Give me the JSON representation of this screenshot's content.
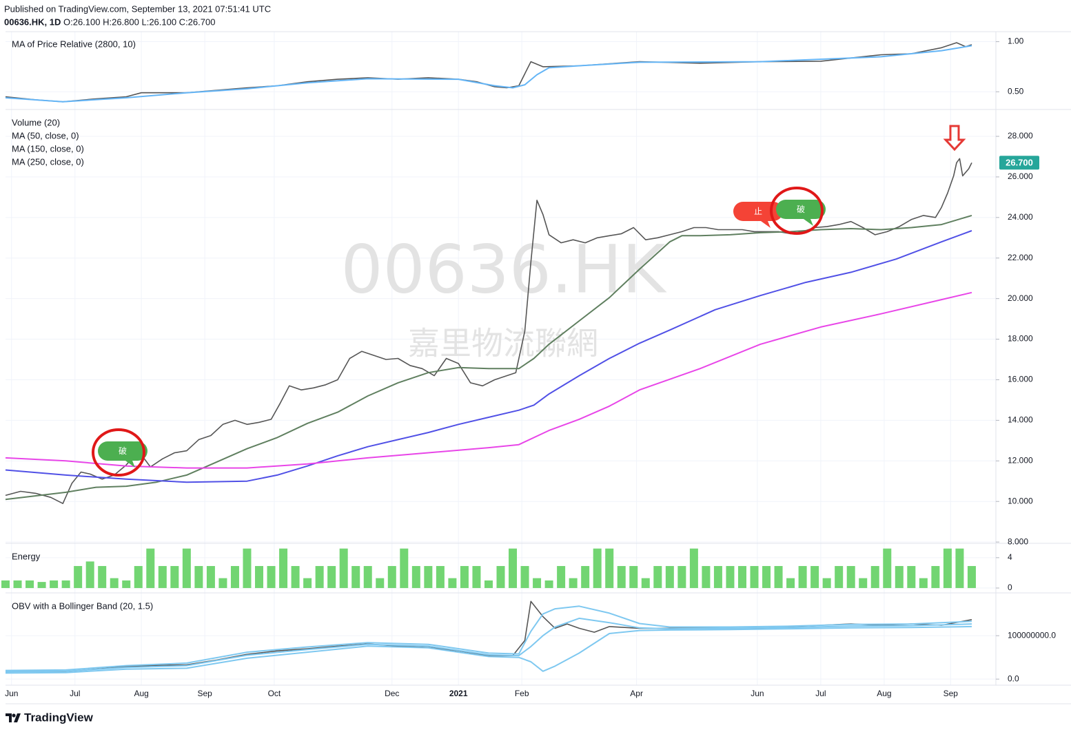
{
  "header": {
    "published": "Published on TradingView.com, September 13, 2021 07:51:41 UTC",
    "symbol": "00636.HK, 1D",
    "ohlc": "O:26.100 H:26.800 L:26.100 C:26.700"
  },
  "footer": {
    "brand": "TradingView"
  },
  "chart_data": [
    {
      "type": "line",
      "title": "MA of Price Relative (2800, 10)",
      "series": [
        {
          "color": "#555555",
          "x": [
            0,
            10,
            19,
            30,
            40,
            45,
            60,
            80,
            90,
            100,
            110,
            120,
            130,
            140,
            150,
            156,
            162,
            166,
            170,
            174,
            178,
            190,
            210,
            230,
            250,
            270,
            290,
            300,
            310,
            315,
            318,
            320
          ],
          "values": [
            0.45,
            0.42,
            0.4,
            0.43,
            0.45,
            0.49,
            0.49,
            0.54,
            0.56,
            0.6,
            0.625,
            0.64,
            0.625,
            0.64,
            0.625,
            0.6,
            0.55,
            0.54,
            0.56,
            0.8,
            0.75,
            0.76,
            0.8,
            0.785,
            0.8,
            0.805,
            0.87,
            0.88,
            0.94,
            0.99,
            0.95,
            0.97
          ]
        },
        {
          "color": "#64b5f6",
          "x": [
            0,
            19,
            40,
            60,
            80,
            100,
            120,
            150,
            162,
            168,
            172,
            176,
            180,
            190,
            210,
            250,
            290,
            310,
            320
          ],
          "values": [
            0.44,
            0.4,
            0.44,
            0.49,
            0.53,
            0.59,
            0.63,
            0.625,
            0.56,
            0.54,
            0.57,
            0.67,
            0.74,
            0.76,
            0.795,
            0.8,
            0.85,
            0.91,
            0.96
          ]
        }
      ],
      "ylim": [
        0.33,
        1.1
      ],
      "yticks": [
        {
          "value": 1,
          "label": "1.00"
        },
        {
          "value": 0.5,
          "label": "0.50"
        }
      ],
      "grid": true
    },
    {
      "type": "line",
      "subtitle": "Volume (20)",
      "watermark": [
        "00636.HK",
        "嘉里物流聯網"
      ],
      "series": [
        {
          "color": "#555555",
          "x": [
            0,
            5,
            10,
            15,
            19,
            22,
            25,
            28,
            32,
            36,
            40,
            44,
            48,
            52,
            56,
            60,
            64,
            68,
            72,
            76,
            80,
            84,
            88,
            91,
            94,
            98,
            102,
            106,
            110,
            114,
            118,
            122,
            126,
            130,
            134,
            138,
            142,
            146,
            150,
            154,
            158,
            162,
            166,
            169,
            172,
            174,
            176,
            178,
            180,
            184,
            188,
            192,
            196,
            200,
            204,
            208,
            212,
            216,
            220,
            224,
            228,
            232,
            236,
            240,
            244,
            248,
            252,
            256,
            260,
            264,
            268,
            272,
            276,
            280,
            284,
            288,
            292,
            296,
            300,
            304,
            308,
            310,
            312,
            314,
            315,
            316,
            317,
            319,
            320
          ],
          "values": [
            10.3,
            10.5,
            10.4,
            10.2,
            9.9,
            10.9,
            11.45,
            11.35,
            11.1,
            11.3,
            11.8,
            12.5,
            11.7,
            12.1,
            12.4,
            12.5,
            13.05,
            13.25,
            13.8,
            14.0,
            13.8,
            13.9,
            14.05,
            14.85,
            15.7,
            15.5,
            15.6,
            15.75,
            16.0,
            17.05,
            17.4,
            17.2,
            17.0,
            17.05,
            16.7,
            16.55,
            16.2,
            17.05,
            16.8,
            15.85,
            15.7,
            16.0,
            16.2,
            16.35,
            18.4,
            21.8,
            24.85,
            24.15,
            23.15,
            22.75,
            22.9,
            22.75,
            23.0,
            23.1,
            23.2,
            23.5,
            22.9,
            23.0,
            23.15,
            23.3,
            23.5,
            23.5,
            23.4,
            23.4,
            23.4,
            23.3,
            23.3,
            23.3,
            23.2,
            23.3,
            23.5,
            23.55,
            23.65,
            23.8,
            23.5,
            23.15,
            23.3,
            23.55,
            23.9,
            24.1,
            24.0,
            24.5,
            25.2,
            26.05,
            26.7,
            26.9,
            26.05,
            26.4,
            26.7
          ]
        },
        {
          "name": "MA (50, close, 0)",
          "color": "#5f7f5f",
          "x": [
            0,
            20,
            30,
            40,
            50,
            60,
            70,
            80,
            90,
            100,
            110,
            120,
            130,
            140,
            150,
            160,
            170,
            175,
            180,
            190,
            200,
            210,
            220,
            224,
            230,
            240,
            250,
            260,
            270,
            280,
            290,
            300,
            310,
            320
          ],
          "values": [
            10.1,
            10.45,
            10.7,
            10.75,
            10.95,
            11.3,
            11.95,
            12.6,
            13.15,
            13.85,
            14.4,
            15.2,
            15.85,
            16.35,
            16.6,
            16.55,
            16.55,
            17.05,
            17.75,
            18.9,
            20.05,
            21.45,
            22.8,
            23.1,
            23.1,
            23.15,
            23.25,
            23.3,
            23.4,
            23.45,
            23.4,
            23.5,
            23.65,
            24.1
          ]
        },
        {
          "name": "MA (150, close, 0)",
          "color": "#5050e6",
          "x": [
            0,
            20,
            40,
            60,
            80,
            90,
            100,
            110,
            120,
            130,
            140,
            150,
            160,
            170,
            175,
            180,
            190,
            200,
            210,
            220,
            235,
            250,
            265,
            280,
            295,
            310,
            320
          ],
          "values": [
            11.55,
            11.3,
            11.1,
            10.95,
            11.0,
            11.3,
            11.75,
            12.25,
            12.7,
            13.05,
            13.4,
            13.8,
            14.15,
            14.5,
            14.75,
            15.3,
            16.2,
            17.05,
            17.8,
            18.45,
            19.45,
            20.15,
            20.8,
            21.3,
            21.95,
            22.8,
            23.35
          ]
        },
        {
          "name": "MA (250, close, 0)",
          "color": "#e845e8",
          "x": [
            0,
            20,
            40,
            60,
            80,
            100,
            120,
            140,
            160,
            170,
            180,
            190,
            200,
            210,
            230,
            250,
            270,
            290,
            310,
            320
          ],
          "values": [
            12.15,
            12.0,
            11.75,
            11.65,
            11.65,
            11.85,
            12.15,
            12.4,
            12.65,
            12.8,
            13.5,
            14.05,
            14.7,
            15.5,
            16.55,
            17.75,
            18.6,
            19.25,
            19.95,
            20.3
          ]
        }
      ],
      "annotations": [
        {
          "text": "破",
          "color": "#4caf50"
        },
        {
          "text": "止",
          "color": "#f44336"
        },
        {
          "text": "破",
          "color": "#4caf50"
        }
      ],
      "last_price": {
        "value": 26.7,
        "label": "26.700",
        "color": "#26a69a"
      },
      "ylim": [
        7.97,
        29.29
      ],
      "yticks": [
        {
          "value": 28,
          "label": "28.000"
        },
        {
          "value": 26,
          "label": "26.000"
        },
        {
          "value": 24,
          "label": "24.000"
        },
        {
          "value": 22,
          "label": "22.000"
        },
        {
          "value": 20,
          "label": "20.000"
        },
        {
          "value": 18,
          "label": "18.000"
        },
        {
          "value": 16,
          "label": "16.000"
        },
        {
          "value": 14,
          "label": "14.000"
        },
        {
          "value": 12,
          "label": "12.000"
        },
        {
          "value": 10,
          "label": "10.000"
        },
        {
          "value": 8,
          "label": "8.000"
        }
      ],
      "grid": true
    },
    {
      "type": "bar",
      "title": "Energy",
      "color": "#72d572",
      "x": [
        0,
        4,
        8,
        12,
        16,
        20,
        24,
        28,
        32,
        36,
        40,
        44,
        48,
        52,
        56,
        60,
        64,
        68,
        72,
        76,
        80,
        84,
        88,
        92,
        96,
        100,
        104,
        108,
        112,
        116,
        120,
        124,
        128,
        132,
        136,
        140,
        144,
        148,
        152,
        156,
        160,
        164,
        168,
        172,
        176,
        180,
        184,
        188,
        192,
        196,
        200,
        204,
        208,
        212,
        216,
        220,
        224,
        228,
        232,
        236,
        240,
        244,
        248,
        252,
        256,
        260,
        264,
        268,
        272,
        276,
        280,
        284,
        288,
        292,
        296,
        300,
        304,
        308,
        312,
        316,
        320
      ],
      "values": [
        1.0,
        1.0,
        1.0,
        0.8,
        1.0,
        1.0,
        2.9,
        3.5,
        2.9,
        1.3,
        1.0,
        2.9,
        5.2,
        2.9,
        2.9,
        5.2,
        2.9,
        2.9,
        1.3,
        2.9,
        5.2,
        2.9,
        2.9,
        5.2,
        2.9,
        1.3,
        2.9,
        2.9,
        5.2,
        2.9,
        2.9,
        1.3,
        2.9,
        5.2,
        2.9,
        2.9,
        2.9,
        1.3,
        2.9,
        2.9,
        1.0,
        2.9,
        5.2,
        2.9,
        1.3,
        1.0,
        2.9,
        1.3,
        2.9,
        5.2,
        5.2,
        2.9,
        2.9,
        1.3,
        2.9,
        2.9,
        2.9,
        5.2,
        2.9,
        2.9,
        2.9,
        2.9,
        2.9,
        2.9,
        2.9,
        1.3,
        2.9,
        2.9,
        1.3,
        2.9,
        2.9,
        1.3,
        2.9,
        5.2,
        2.9,
        2.9,
        1.3,
        2.9,
        5.2,
        5.2,
        2.9
      ],
      "ylim": [
        -0.55,
        5.8
      ],
      "yticks": [
        4,
        0
      ],
      "grid": true
    },
    {
      "type": "line",
      "title": "OBV with a Bollinger Band (20, 1.5)",
      "series": [
        {
          "color": "#555555",
          "x": [
            0,
            20,
            40,
            50,
            60,
            70,
            80,
            90,
            100,
            110,
            120,
            130,
            140,
            150,
            160,
            168,
            172,
            174,
            178,
            182,
            186,
            190,
            195,
            200,
            210,
            220,
            230,
            240,
            250,
            260,
            270,
            280,
            290,
            300,
            310,
            320
          ],
          "values": [
            17500000,
            17500000,
            28600000,
            31700000,
            33000000,
            44000000,
            57000000,
            65000000,
            70000000,
            76000000,
            81000000,
            76000000,
            73000000,
            65000000,
            54000000,
            54000000,
            89000000,
            179000000,
            144000000,
            117000000,
            127000000,
            117000000,
            108000000,
            121000000,
            117000000,
            117000000,
            117000000,
            117000000,
            117000000,
            121000000,
            124000000,
            127000000,
            124000000,
            127000000,
            124000000,
            137000000
          ]
        },
        {
          "color": "#7ec8f0",
          "x": [
            0,
            20,
            40,
            60,
            80,
            100,
            120,
            140,
            160,
            170,
            174,
            178,
            182,
            190,
            200,
            210,
            220,
            240,
            260,
            280,
            300,
            320
          ],
          "values": [
            20000000,
            21000000,
            31000000,
            37000000,
            62000000,
            74000000,
            84000000,
            80000000,
            60000000,
            58000000,
            110000000,
            150000000,
            162000000,
            168000000,
            152000000,
            128000000,
            120000000,
            120000000,
            122000000,
            126000000,
            127000000,
            133000000
          ]
        },
        {
          "color": "#7ec8f0",
          "x": [
            0,
            20,
            40,
            60,
            80,
            100,
            120,
            140,
            160,
            170,
            174,
            178,
            182,
            190,
            200,
            210,
            220,
            240,
            260,
            280,
            300,
            320
          ],
          "values": [
            17000000,
            18000000,
            27000000,
            31000000,
            55000000,
            68000000,
            80000000,
            76000000,
            56000000,
            54000000,
            75000000,
            100000000,
            120000000,
            140000000,
            130000000,
            118000000,
            116000000,
            117000000,
            119000000,
            122000000,
            123000000,
            127000000
          ]
        },
        {
          "color": "#7ec8f0",
          "x": [
            0,
            20,
            40,
            60,
            80,
            100,
            120,
            140,
            160,
            170,
            174,
            178,
            182,
            190,
            200,
            210,
            220,
            240,
            260,
            280,
            300,
            320
          ],
          "values": [
            14000000,
            15000000,
            23000000,
            25000000,
            48000000,
            62000000,
            76000000,
            72000000,
            52000000,
            50000000,
            40000000,
            18000000,
            30000000,
            60000000,
            105000000,
            112000000,
            113000000,
            114000000,
            116000000,
            118000000,
            119000000,
            121000000
          ]
        }
      ],
      "ylim": [
        -14000000,
        197000000
      ],
      "yticks": [
        {
          "value": 100000000,
          "label": "100000000.0"
        },
        {
          "value": 0,
          "label": "0.0"
        }
      ],
      "xlim": [
        0,
        328
      ],
      "xticks": [
        {
          "value": 2,
          "label": "Jun"
        },
        {
          "value": 23,
          "label": "Jul"
        },
        {
          "value": 45,
          "label": "Aug"
        },
        {
          "value": 66,
          "label": "Sep"
        },
        {
          "value": 89,
          "label": "Oct"
        },
        {
          "value": 128,
          "label": "Dec"
        },
        {
          "value": 150,
          "label": "2021",
          "bold": true
        },
        {
          "value": 171,
          "label": "Feb"
        },
        {
          "value": 209,
          "label": "Apr"
        },
        {
          "value": 249,
          "label": "Jun"
        },
        {
          "value": 270,
          "label": "Jul"
        },
        {
          "value": 291,
          "label": "Aug"
        },
        {
          "value": 313,
          "label": "Sep"
        }
      ],
      "grid": true
    }
  ]
}
